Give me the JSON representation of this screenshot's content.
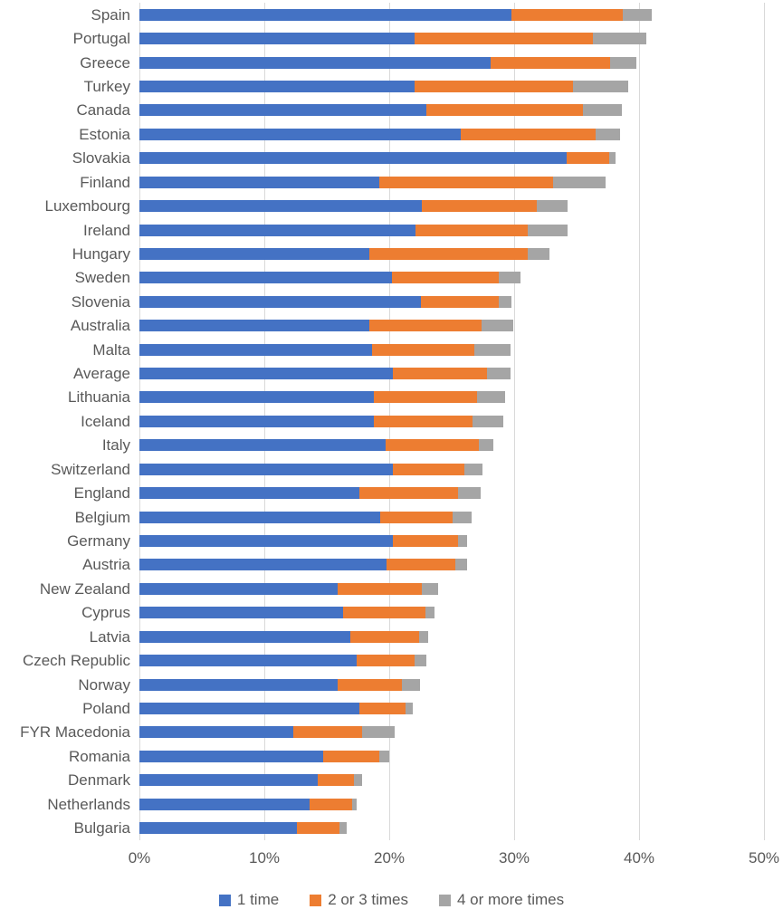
{
  "chart_data": {
    "type": "bar",
    "orientation": "horizontal",
    "stacked": true,
    "title": "",
    "xlabel": "",
    "ylabel": "",
    "xlim": [
      0,
      50
    ],
    "x_ticks": [
      "0%",
      "10%",
      "20%",
      "30%",
      "40%",
      "50%"
    ],
    "grid": "vertical",
    "gridline_color": "#d9d9d9",
    "legend_position": "bottom",
    "categories": [
      "Spain",
      "Portugal",
      "Greece",
      "Turkey",
      "Canada",
      "Estonia",
      "Slovakia",
      "Finland",
      "Luxembourg",
      "Ireland",
      "Hungary",
      "Sweden",
      "Slovenia",
      "Australia",
      "Malta",
      "Average",
      "Lithuania",
      "Iceland",
      "Italy",
      "Switzerland",
      "England",
      "Belgium",
      "Germany",
      "Austria",
      "New Zealand",
      "Cyprus",
      "Latvia",
      "Czech Republic",
      "Norway",
      "Poland",
      "FYR Macedonia",
      "Romania",
      "Denmark",
      "Netherlands",
      "Bulgaria"
    ],
    "series": [
      {
        "name": "1 time",
        "color": "#4472c4",
        "values": [
          29.8,
          22.0,
          28.1,
          22.0,
          23.0,
          25.7,
          34.2,
          19.2,
          22.6,
          22.1,
          18.4,
          20.2,
          22.5,
          18.4,
          18.6,
          20.3,
          18.8,
          18.8,
          19.7,
          20.3,
          17.6,
          19.3,
          20.3,
          19.8,
          15.9,
          16.3,
          16.9,
          17.4,
          15.9,
          17.6,
          12.3,
          14.7,
          14.3,
          13.6,
          12.6
        ]
      },
      {
        "name": "2 or 3 times",
        "color": "#ed7d31",
        "values": [
          8.9,
          14.3,
          9.6,
          12.7,
          12.5,
          10.8,
          3.4,
          13.9,
          9.2,
          9.0,
          12.7,
          8.6,
          6.3,
          9.0,
          8.2,
          7.5,
          8.2,
          7.9,
          7.5,
          5.7,
          7.9,
          5.8,
          5.2,
          5.5,
          6.7,
          6.6,
          5.5,
          4.6,
          5.1,
          3.7,
          5.5,
          4.5,
          2.9,
          3.4,
          3.4
        ]
      },
      {
        "name": "4 or more times",
        "color": "#a5a5a5",
        "values": [
          2.3,
          4.3,
          2.1,
          4.4,
          3.1,
          2.0,
          0.5,
          4.2,
          2.5,
          3.2,
          1.7,
          1.7,
          1.0,
          2.5,
          2.9,
          1.9,
          2.3,
          2.4,
          1.1,
          1.5,
          1.8,
          1.5,
          0.7,
          0.9,
          1.3,
          0.7,
          0.7,
          1.0,
          1.5,
          0.6,
          2.6,
          0.8,
          0.6,
          0.4,
          0.6
        ]
      }
    ]
  },
  "legend": {
    "items": [
      {
        "label": "1 time",
        "color": "#4472c4"
      },
      {
        "label": "2 or 3 times",
        "color": "#ed7d31"
      },
      {
        "label": "4 or more times",
        "color": "#a5a5a5"
      }
    ]
  }
}
